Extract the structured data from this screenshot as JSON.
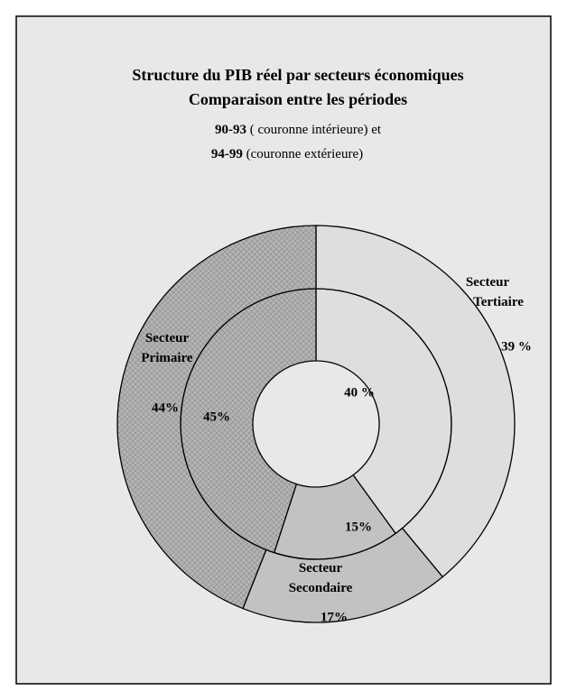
{
  "chart_data": {
    "type": "donut",
    "title": "Structure du PIB réel par secteurs économiques",
    "subtitle": "Comparaison entre les périodes",
    "categories": [
      "Secteur Tertiaire",
      "Secteur Secondaire",
      "Secteur Primaire"
    ],
    "colors": [
      "#dedede",
      "#c2c2c2",
      "#b4b4b4"
    ],
    "series": [
      {
        "name": "90-93",
        "description": "( couronne intérieure) et",
        "values": [
          40,
          15,
          45
        ],
        "value_labels": [
          "40 %",
          "15%",
          "45%"
        ]
      },
      {
        "name": "94-99",
        "description": "(couronne extérieure)",
        "values": [
          39,
          17,
          44
        ],
        "value_labels": [
          "39 %",
          "17%",
          "44%"
        ]
      }
    ]
  }
}
